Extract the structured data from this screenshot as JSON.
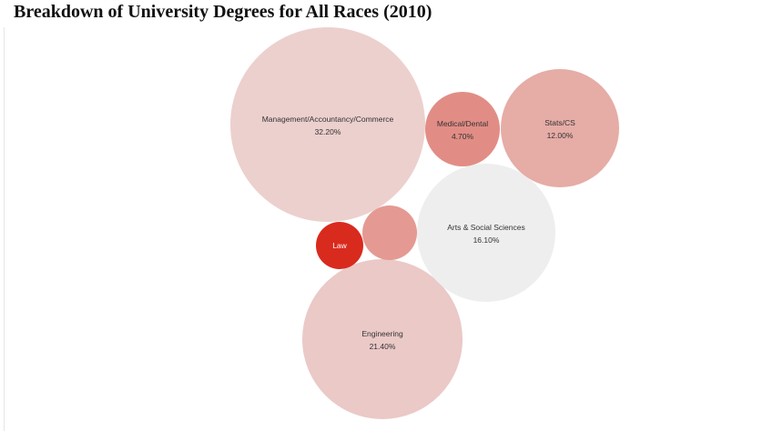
{
  "title": "Breakdown of University Degrees for All Races (2010)",
  "chart_data": {
    "type": "bubble",
    "title": "Breakdown of University Degrees for All Races (2010)",
    "unit": "%",
    "items": [
      {
        "category": "Management/Accountancy/Commerce",
        "value": 32.2,
        "value_label": "32.20%",
        "color": "#ecd0ce",
        "show_label": true
      },
      {
        "category": "Engineering",
        "value": 21.4,
        "value_label": "21.40%",
        "color": "#eac9c7",
        "show_label": true
      },
      {
        "category": "Arts & Social Sciences",
        "value": 16.1,
        "value_label": "16.10%",
        "color": "#eeeeee",
        "show_label": true
      },
      {
        "category": "Stats/CS",
        "value": 12.0,
        "value_label": "12.00%",
        "color": "#e6aca6",
        "show_label": true
      },
      {
        "category": "Medical/Dental",
        "value": 4.7,
        "value_label": "4.70%",
        "color": "#e18d85",
        "show_label": true
      },
      {
        "category": "",
        "value": null,
        "value_label": "",
        "color": "#e49a92",
        "show_label": false
      },
      {
        "category": "Law",
        "value": null,
        "value_label": "",
        "color": "#d92a1e",
        "show_label": true,
        "dark": true
      }
    ]
  }
}
